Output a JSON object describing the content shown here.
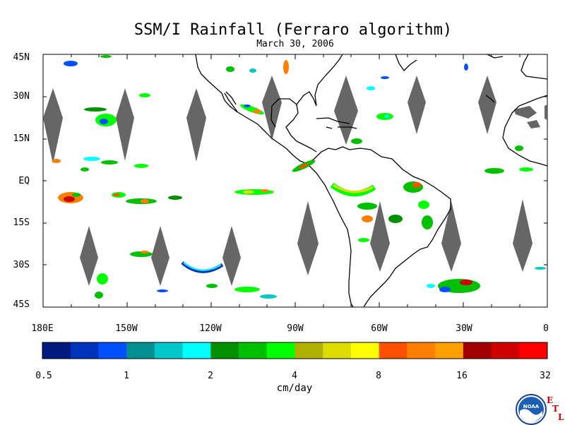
{
  "title": "SSM/I Rainfall (Ferraro algorithm)",
  "date": "March 30, 2006",
  "map": {
    "lat_labels": [
      "45N",
      "30N",
      "15N",
      "EQ",
      "15S",
      "30S",
      "45S"
    ],
    "lon_labels": [
      "180E",
      "150W",
      "120W",
      "90W",
      "60W",
      "30W",
      "0"
    ],
    "lat_range": [
      -45,
      45
    ],
    "lon_range": [
      -180,
      0
    ]
  },
  "colorbar": {
    "tick_labels": [
      "0.5",
      "1",
      "2",
      "4",
      "8",
      "16",
      "32"
    ],
    "units": "cm/day",
    "colors": [
      "#001a7f",
      "#0033bb",
      "#0050ff",
      "#009090",
      "#00c8c8",
      "#00ffff",
      "#009000",
      "#00c000",
      "#00ff00",
      "#b0b000",
      "#dcdc00",
      "#ffff00",
      "#ff5000",
      "#ff8000",
      "#ffa000",
      "#a00000",
      "#d00000",
      "#ff0000"
    ]
  },
  "logo": {
    "agency": "NOAA",
    "lab_letters": [
      "E",
      "T",
      "L"
    ]
  }
}
